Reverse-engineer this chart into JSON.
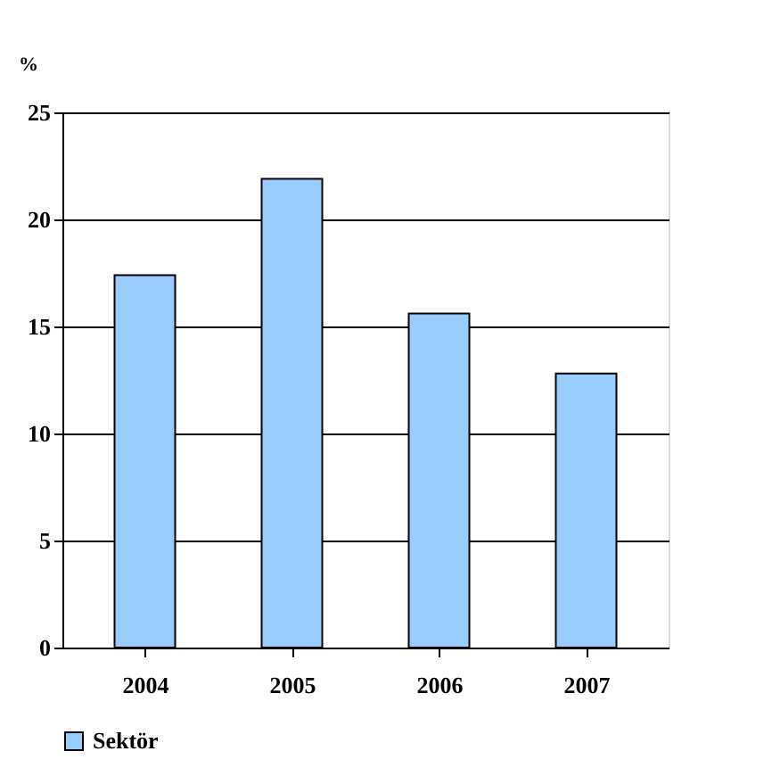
{
  "chart_data": {
    "type": "bar",
    "ylabel": "%",
    "categories": [
      "2004",
      "2005",
      "2006",
      "2007"
    ],
    "series": [
      {
        "name": "Sektör",
        "color": "#99ccff",
        "values": [
          17.4,
          21.9,
          15.6,
          12.8
        ]
      }
    ],
    "ylim": [
      0,
      25
    ],
    "yticks": [
      0,
      5,
      10,
      15,
      20,
      25
    ],
    "grid": "y",
    "legend": "bottom"
  }
}
